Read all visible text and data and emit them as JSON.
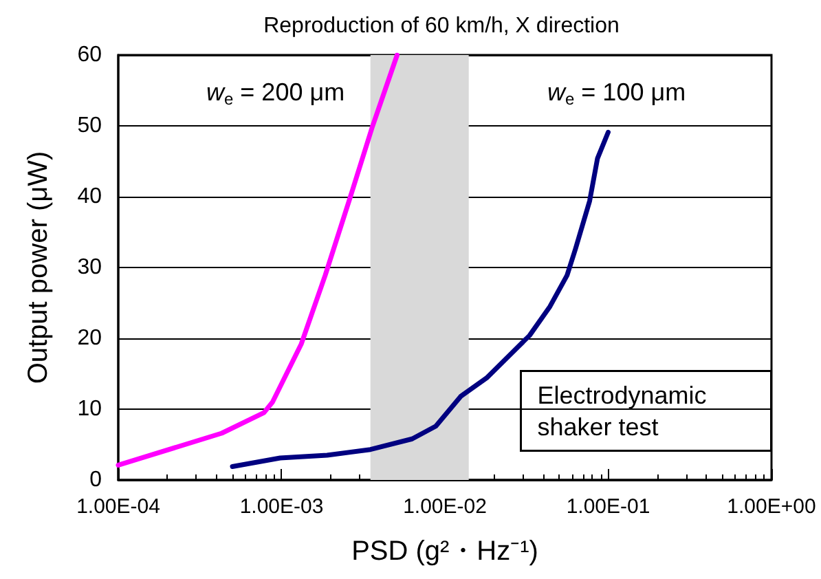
{
  "chart_data": {
    "type": "line",
    "title": "Reproduction of 60 km/h, X direction",
    "xlabel": "PSD (g²・Hz⁻¹)",
    "ylabel": "Output power (μW)",
    "log": "x",
    "xlim": [
      0.0001,
      1
    ],
    "xticks": [
      {
        "value": 0.0001,
        "label": "1.00E-04"
      },
      {
        "value": 0.001,
        "label": "1.00E-03"
      },
      {
        "value": 0.01,
        "label": "1.00E-02"
      },
      {
        "value": 0.1,
        "label": "1.00E-01"
      },
      {
        "value": 1,
        "label": "1.00E+00"
      }
    ],
    "ylim": [
      0,
      60
    ],
    "yticks": [
      0,
      10,
      20,
      30,
      40,
      50,
      60
    ],
    "grid": "y",
    "marker": "none",
    "line_style": "solid",
    "bands": [
      {
        "axis": "x",
        "from": 0.0035,
        "to": 0.014,
        "color": "#d9d9d9"
      }
    ],
    "annotations": [
      "Electrodynamic shaker test"
    ],
    "series": [
      {
        "name": "w$_{e}$ = 200 μm",
        "color": "#ff00ff",
        "x": [
          0.0001,
          0.00043,
          0.00078,
          0.00088,
          0.00132,
          0.00185,
          0.00259,
          0.0036,
          0.0051
        ],
        "values": [
          2.1,
          6.6,
          9.5,
          11,
          19.2,
          28.9,
          39.4,
          49.9,
          60
        ]
      },
      {
        "name": "w$_{e}$ = 100 μm",
        "color": "#000080",
        "x": [
          0.0005,
          0.00098,
          0.0019,
          0.0035,
          0.0063,
          0.0088,
          0.0125,
          0.018,
          0.033,
          0.044,
          0.056,
          0.063,
          0.077,
          0.086,
          0.1
        ],
        "values": [
          1.9,
          3.1,
          3.5,
          4.3,
          5.8,
          7.6,
          11.8,
          14.4,
          20.4,
          24.5,
          28.9,
          32.6,
          39.4,
          45.4,
          49.1
        ]
      }
    ]
  }
}
